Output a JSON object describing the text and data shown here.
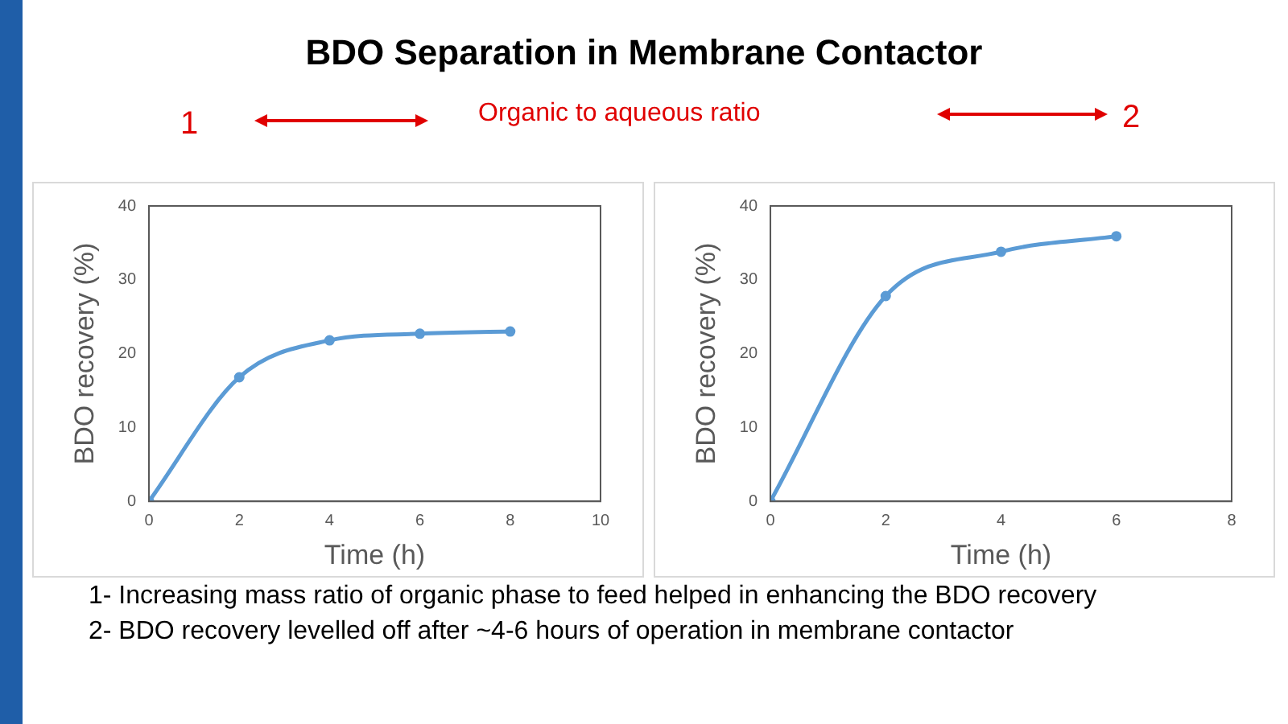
{
  "chart_data": [
    {
      "type": "line",
      "title": "BDO Separation in Membrane Contactor",
      "xlabel": "Time (h)",
      "ylabel": "BDO recovery (%)",
      "x": [
        0,
        2,
        4,
        6,
        8
      ],
      "series": [
        {
          "color": "#5b9bd5",
          "values": [
            0,
            16.8,
            21.8,
            22.7,
            23.0
          ]
        }
      ],
      "xlim": [
        0,
        10
      ],
      "xticks": [
        0,
        2,
        4,
        6,
        8,
        10
      ],
      "ylim": [
        0,
        40
      ],
      "yticks": [
        0,
        10,
        20,
        30,
        40
      ],
      "grid": false,
      "legend": false,
      "marker": "circle",
      "line_style": "solid",
      "annotations": [
        "1",
        "Organic to aqueous ratio",
        "1- Increasing mass ratio of organic phase to feed helped in enhancing the BDO recovery",
        "2- BDO recovery levelled off after ~4-6 hours of operation in membrane contactor"
      ]
    },
    {
      "type": "line",
      "xlabel": "Time (h)",
      "ylabel": "BDO recovery (%)",
      "x": [
        0,
        2,
        4,
        6
      ],
      "series": [
        {
          "color": "#5b9bd5",
          "values": [
            0,
            27.8,
            33.8,
            35.9
          ]
        }
      ],
      "xlim": [
        0,
        8
      ],
      "xticks": [
        0,
        2,
        4,
        6,
        8
      ],
      "ylim": [
        0,
        40
      ],
      "yticks": [
        0,
        10,
        20,
        30,
        40
      ],
      "grid": false,
      "legend": false,
      "marker": "circle",
      "line_style": "solid",
      "annotations": [
        "2"
      ]
    }
  ]
}
